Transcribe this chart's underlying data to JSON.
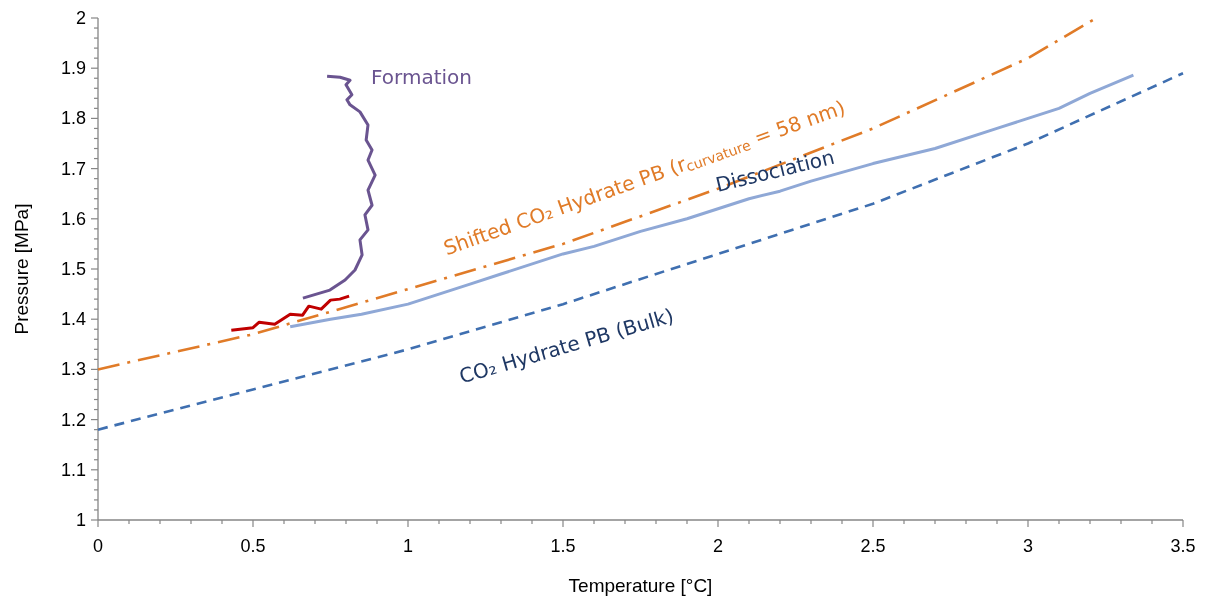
{
  "chart_data": {
    "type": "line",
    "xlabel": "Temperature [°C]",
    "ylabel": "Pressure [MPa]",
    "xlim": [
      0,
      3.5
    ],
    "ylim": [
      1,
      2
    ],
    "xticks": [
      0,
      {
        "value": 0.1,
        "label": null
      },
      {
        "value": 0.2,
        "label": null
      },
      {
        "value": 0.3,
        "label": null
      },
      {
        "value": 0.4,
        "label": null
      },
      0.5,
      {
        "value": 0.6,
        "label": null
      },
      {
        "value": 0.7,
        "label": null
      },
      {
        "value": 0.8,
        "label": null
      },
      {
        "value": 0.9,
        "label": null
      },
      1,
      {
        "value": 1.1,
        "label": null
      },
      {
        "value": 1.2,
        "label": null
      },
      {
        "value": 1.3,
        "label": null
      },
      {
        "value": 1.4,
        "label": null
      },
      1.5,
      {
        "value": 1.6,
        "label": null
      },
      {
        "value": 1.7,
        "label": null
      },
      {
        "value": 1.8,
        "label": null
      },
      {
        "value": 1.9,
        "label": null
      },
      2,
      {
        "value": 2.1,
        "label": null
      },
      {
        "value": 2.2,
        "label": null
      },
      {
        "value": 2.3,
        "label": null
      },
      {
        "value": 2.4,
        "label": null
      },
      2.5,
      {
        "value": 2.6,
        "label": null
      },
      {
        "value": 2.7,
        "label": null
      },
      {
        "value": 2.8,
        "label": null
      },
      {
        "value": 2.9,
        "label": null
      },
      3,
      {
        "value": 3.1,
        "label": null
      },
      {
        "value": 3.2,
        "label": null
      },
      {
        "value": 3.3,
        "label": null
      },
      {
        "value": 3.4,
        "label": null
      },
      3.5
    ],
    "yticks": [
      1,
      {
        "value": 1.02,
        "label": null
      },
      {
        "value": 1.04,
        "label": null
      },
      {
        "value": 1.06,
        "label": null
      },
      {
        "value": 1.08,
        "label": null
      },
      1.1,
      {
        "value": 1.12,
        "label": null
      },
      {
        "value": 1.14,
        "label": null
      },
      {
        "value": 1.16,
        "label": null
      },
      {
        "value": 1.18,
        "label": null
      },
      1.2,
      {
        "value": 1.22,
        "label": null
      },
      {
        "value": 1.24,
        "label": null
      },
      {
        "value": 1.26,
        "label": null
      },
      {
        "value": 1.28,
        "label": null
      },
      1.3,
      {
        "value": 1.32,
        "label": null
      },
      {
        "value": 1.34,
        "label": null
      },
      {
        "value": 1.36,
        "label": null
      },
      {
        "value": 1.38,
        "label": null
      },
      1.4,
      {
        "value": 1.42,
        "label": null
      },
      {
        "value": 1.44,
        "label": null
      },
      {
        "value": 1.46,
        "label": null
      },
      {
        "value": 1.48,
        "label": null
      },
      1.5,
      {
        "value": 1.52,
        "label": null
      },
      {
        "value": 1.54,
        "label": null
      },
      {
        "value": 1.56,
        "label": null
      },
      {
        "value": 1.58,
        "label": null
      },
      1.6,
      {
        "value": 1.62,
        "label": null
      },
      {
        "value": 1.64,
        "label": null
      },
      {
        "value": 1.66,
        "label": null
      },
      {
        "value": 1.68,
        "label": null
      },
      1.7,
      {
        "value": 1.72,
        "label": null
      },
      {
        "value": 1.74,
        "label": null
      },
      {
        "value": 1.76,
        "label": null
      },
      {
        "value": 1.78,
        "label": null
      },
      1.8,
      {
        "value": 1.82,
        "label": null
      },
      {
        "value": 1.84,
        "label": null
      },
      {
        "value": 1.86,
        "label": null
      },
      {
        "value": 1.88,
        "label": null
      },
      1.9,
      {
        "value": 1.92,
        "label": null
      },
      {
        "value": 1.94,
        "label": null
      },
      {
        "value": 1.96,
        "label": null
      },
      {
        "value": 1.98,
        "label": null
      },
      2
    ],
    "marker": "none",
    "series": [
      {
        "name": "CO₂ Hydrate PB (Bulk)",
        "color": "#3f6fb0",
        "line_style": "dashed",
        "x": [
          0,
          0.5,
          1,
          1.5,
          2,
          2.5,
          3,
          3.5
        ],
        "values": [
          1.18,
          1.26,
          1.34,
          1.43,
          1.53,
          1.63,
          1.75,
          1.89
        ]
      },
      {
        "name": "Shifted CO₂ Hydrate PB (r$_{curvature}$ = 58 nm)",
        "color": "#e07b28",
        "line_style": "dashdot",
        "x": [
          0,
          0.5,
          1,
          1.5,
          2,
          2.5,
          3,
          3.22
        ],
        "values": [
          1.3,
          1.37,
          1.46,
          1.55,
          1.66,
          1.78,
          1.92,
          2.0
        ]
      },
      {
        "name": "Dissociation",
        "color": "#8fa8d6",
        "line_style": "solid",
        "x": [
          0.62,
          0.75,
          0.85,
          1.0,
          1.1,
          1.2,
          1.3,
          1.5,
          1.6,
          1.75,
          1.9,
          2.0,
          2.1,
          2.2,
          2.3,
          2.5,
          2.7,
          2.9,
          3.0,
          3.1,
          3.2,
          3.34
        ],
        "values": [
          1.385,
          1.4,
          1.41,
          1.43,
          1.45,
          1.47,
          1.49,
          1.53,
          1.545,
          1.575,
          1.6,
          1.62,
          1.64,
          1.655,
          1.675,
          1.71,
          1.74,
          1.78,
          1.8,
          1.82,
          1.85,
          1.886
        ]
      },
      {
        "color": "#c00000",
        "line_style": "solid",
        "x": [
          0.43,
          0.5,
          0.52,
          0.57,
          0.6,
          0.62,
          0.66,
          0.68,
          0.72,
          0.75,
          0.78,
          0.81
        ],
        "values": [
          1.378,
          1.383,
          1.394,
          1.39,
          1.402,
          1.41,
          1.408,
          1.426,
          1.42,
          1.438,
          1.44,
          1.446
        ]
      },
      {
        "name": "Formation",
        "color": "#6a5490",
        "line_style": "solid",
        "x": [
          0.661,
          0.748,
          0.797,
          0.829,
          0.852,
          0.845,
          0.871,
          0.861,
          0.884,
          0.871,
          0.894,
          0.871,
          0.884,
          0.865,
          0.871,
          0.845,
          0.813,
          0.803,
          0.819,
          0.8,
          0.813,
          0.781,
          0.739
        ],
        "values": [
          1.442,
          1.458,
          1.478,
          1.498,
          1.528,
          1.558,
          1.578,
          1.608,
          1.627,
          1.657,
          1.687,
          1.717,
          1.737,
          1.757,
          1.787,
          1.813,
          1.827,
          1.837,
          1.847,
          1.867,
          1.876,
          1.882,
          1.884
        ]
      }
    ]
  }
}
